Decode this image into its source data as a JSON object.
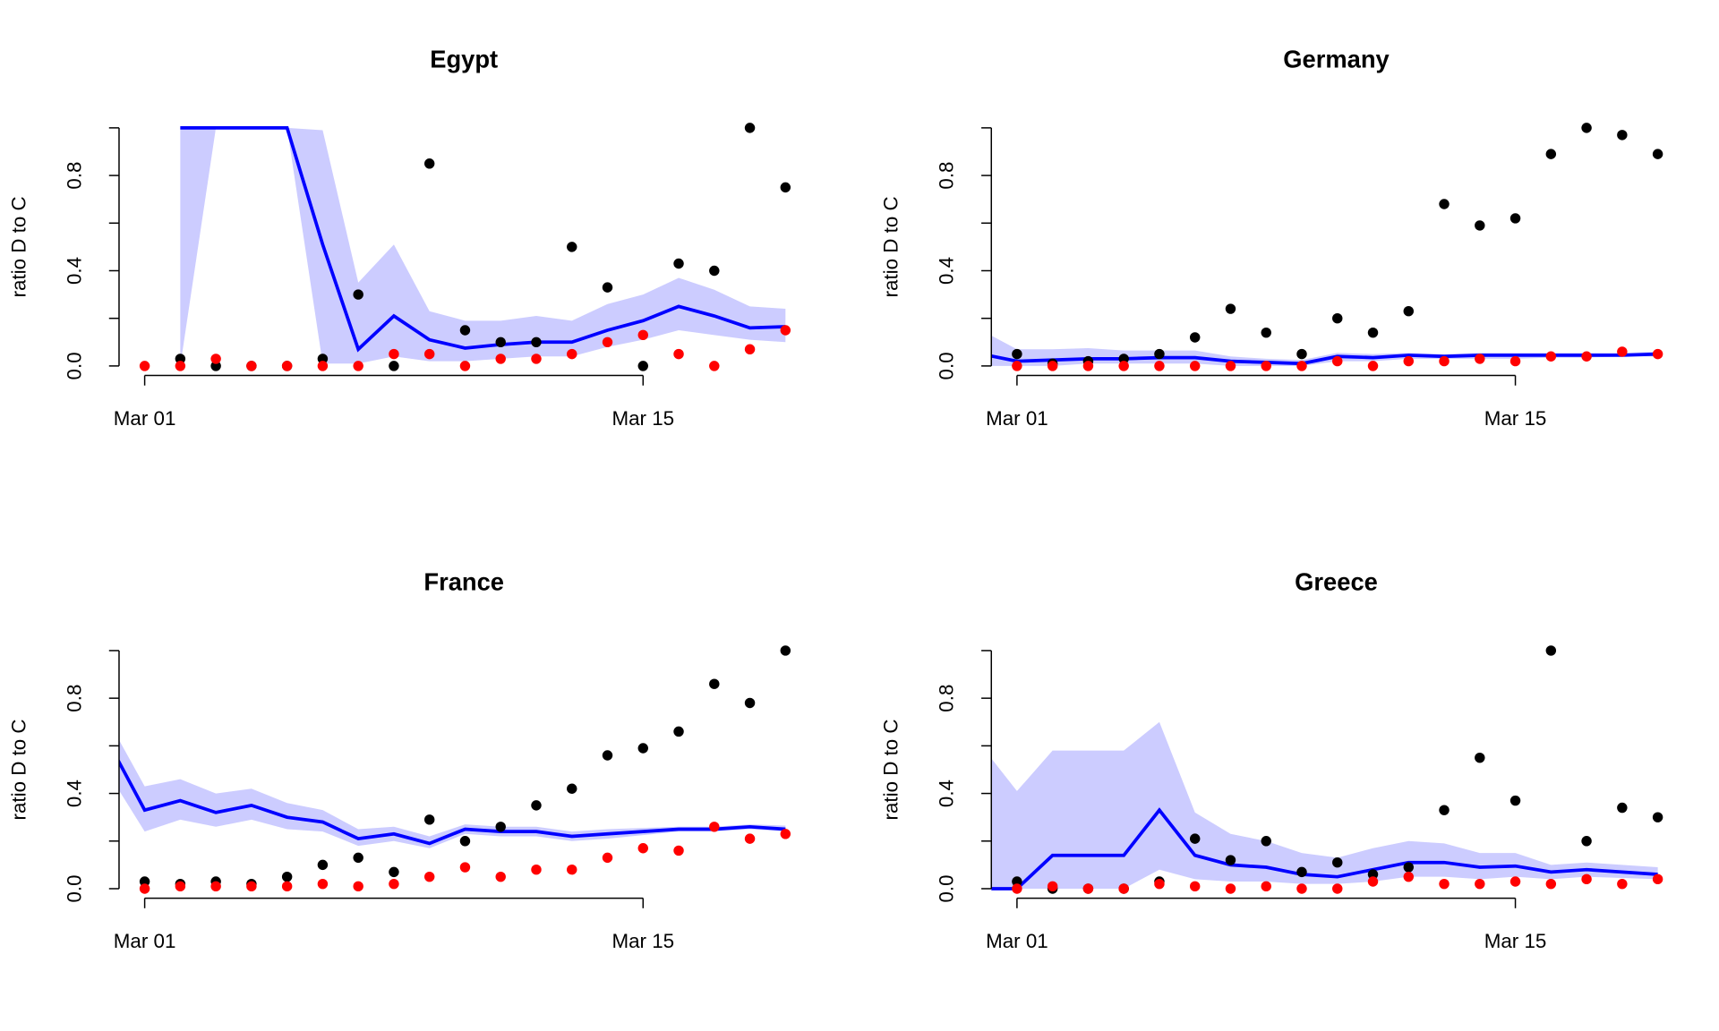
{
  "chart_data": [
    {
      "type": "line",
      "title": "Egypt",
      "ylabel": "ratio D to C",
      "x": [
        0,
        1,
        2,
        3,
        4,
        5,
        6,
        7,
        8,
        9,
        10,
        11,
        12,
        13,
        14,
        15,
        16,
        17,
        18,
        19
      ],
      "xlim": [
        0.28,
        19.72
      ],
      "xticks": [
        {
          "value": 1,
          "label": "Mar 01"
        },
        {
          "value": 15,
          "label": "Mar 15"
        }
      ],
      "ylim": [
        -0.04,
        1.04
      ],
      "yticks": [
        {
          "value": 0,
          "label": "0.0"
        },
        {
          "value": 0.4,
          "label": "0.4"
        },
        {
          "value": 0.8,
          "label": "0.8"
        }
      ],
      "yminorticks": [
        0.2,
        0.6,
        1
      ],
      "band": {
        "color": "#ccccff",
        "lower": [
          null,
          null,
          0,
          1,
          1,
          1,
          0.01,
          0.01,
          0.04,
          0.02,
          0.02,
          0.03,
          0.04,
          0.04,
          0.08,
          0.11,
          0.15,
          0.13,
          0.11,
          0.1
        ],
        "upper": [
          null,
          null,
          1,
          1,
          1,
          1,
          0.99,
          0.35,
          0.51,
          0.23,
          0.19,
          0.19,
          0.21,
          0.19,
          0.26,
          0.3,
          0.37,
          0.32,
          0.25,
          0.24
        ]
      },
      "series": [
        {
          "color": "#0000ff",
          "marker": "line",
          "values": [
            null,
            null,
            1,
            1,
            1,
            1,
            0.51,
            0.07,
            0.21,
            0.11,
            0.075,
            0.09,
            0.1,
            0.1,
            0.15,
            0.19,
            0.25,
            0.21,
            0.16,
            0.165
          ]
        },
        {
          "color": "#000000",
          "marker": "point",
          "values": [
            null,
            null,
            0.03,
            0,
            0,
            0,
            0.03,
            0.3,
            0,
            0.85,
            0.15,
            0.1,
            0.1,
            0.5,
            0.33,
            0,
            0.43,
            0.4,
            1,
            0.75
          ]
        },
        {
          "color": "#ff0000",
          "marker": "point",
          "values": [
            null,
            0,
            0,
            0.03,
            0,
            0,
            0,
            0,
            0.05,
            0.05,
            0,
            0.03,
            0.03,
            0.05,
            0.1,
            0.13,
            0.05,
            0,
            0.07,
            0.15
          ]
        }
      ]
    },
    {
      "type": "line",
      "title": "Germany",
      "ylabel": "ratio D to C",
      "x": [
        0,
        1,
        2,
        3,
        4,
        5,
        6,
        7,
        8,
        9,
        10,
        11,
        12,
        13,
        14,
        15,
        16,
        17,
        18,
        19
      ],
      "xlim": [
        0.28,
        19.72
      ],
      "xticks": [
        {
          "value": 1,
          "label": "Mar 01"
        },
        {
          "value": 15,
          "label": "Mar 15"
        }
      ],
      "ylim": [
        -0.04,
        1.04
      ],
      "yticks": [
        {
          "value": 0,
          "label": "0.0"
        },
        {
          "value": 0.4,
          "label": "0.4"
        },
        {
          "value": 0.8,
          "label": "0.8"
        }
      ],
      "yminorticks": [
        0.2,
        0.6,
        1
      ],
      "band": {
        "color": "#ccccff",
        "lower": [
          0,
          0,
          0,
          0.01,
          0.01,
          0.01,
          0.01,
          0,
          0,
          0,
          0.02,
          0.02,
          0.03,
          0.03,
          0.03,
          0.03,
          0.035,
          0.035,
          0.04,
          0.04
        ],
        "upper": [
          0.15,
          0.07,
          0.07,
          0.075,
          0.065,
          0.065,
          0.065,
          0.04,
          0.03,
          0.025,
          0.055,
          0.05,
          0.055,
          0.05,
          0.055,
          0.055,
          0.055,
          0.055,
          0.055,
          0.06
        ]
      },
      "series": [
        {
          "color": "#0000ff",
          "marker": "line",
          "values": [
            0.05,
            0.02,
            0.025,
            0.03,
            0.03,
            0.035,
            0.035,
            0.02,
            0.015,
            0.01,
            0.04,
            0.035,
            0.045,
            0.04,
            0.045,
            0.045,
            0.045,
            0.045,
            0.045,
            0.05
          ]
        },
        {
          "color": "#000000",
          "marker": "point",
          "values": [
            null,
            0.05,
            0.01,
            0.02,
            0.03,
            0.05,
            0.12,
            0.24,
            0.14,
            0.05,
            0.2,
            0.14,
            0.23,
            0.68,
            0.59,
            0.62,
            0.89,
            1,
            0.97,
            0.89
          ]
        },
        {
          "color": "#ff0000",
          "marker": "point",
          "values": [
            null,
            0,
            0,
            0,
            0,
            0,
            0,
            0,
            0,
            0,
            0.02,
            0,
            0.02,
            0.02,
            0.03,
            0.02,
            0.04,
            0.04,
            0.06,
            0.05
          ]
        }
      ]
    },
    {
      "type": "line",
      "title": "France",
      "ylabel": "ratio D to C",
      "x": [
        0,
        1,
        2,
        3,
        4,
        5,
        6,
        7,
        8,
        9,
        10,
        11,
        12,
        13,
        14,
        15,
        16,
        17,
        18,
        19
      ],
      "xlim": [
        0.28,
        19.72
      ],
      "xticks": [
        {
          "value": 1,
          "label": "Mar 01"
        },
        {
          "value": 15,
          "label": "Mar 15"
        }
      ],
      "ylim": [
        -0.04,
        1.04
      ],
      "yticks": [
        {
          "value": 0,
          "label": "0.0"
        },
        {
          "value": 0.4,
          "label": "0.4"
        },
        {
          "value": 0.8,
          "label": "0.8"
        }
      ],
      "yminorticks": [
        0.2,
        0.6,
        1
      ],
      "band": {
        "color": "#ccccff",
        "lower": [
          0.48,
          0.24,
          0.29,
          0.26,
          0.29,
          0.25,
          0.24,
          0.18,
          0.2,
          0.17,
          0.23,
          0.22,
          0.22,
          0.2,
          0.21,
          0.225,
          0.24,
          0.24,
          0.25,
          0.24
        ],
        "upper": [
          0.7,
          0.43,
          0.46,
          0.4,
          0.42,
          0.36,
          0.33,
          0.25,
          0.26,
          0.22,
          0.27,
          0.26,
          0.26,
          0.24,
          0.25,
          0.255,
          0.26,
          0.26,
          0.27,
          0.265
        ]
      },
      "series": [
        {
          "color": "#0000ff",
          "marker": "line",
          "values": [
            0.61,
            0.33,
            0.37,
            0.32,
            0.35,
            0.3,
            0.28,
            0.21,
            0.23,
            0.19,
            0.25,
            0.24,
            0.24,
            0.22,
            0.23,
            0.24,
            0.25,
            0.25,
            0.26,
            0.25
          ]
        },
        {
          "color": "#000000",
          "marker": "point",
          "values": [
            null,
            0.03,
            0.02,
            0.03,
            0.02,
            0.05,
            0.1,
            0.13,
            0.07,
            0.29,
            0.2,
            0.26,
            0.35,
            0.42,
            0.56,
            0.59,
            0.66,
            0.86,
            0.78,
            1
          ]
        },
        {
          "color": "#ff0000",
          "marker": "point",
          "values": [
            null,
            0,
            0.01,
            0.01,
            0.01,
            0.01,
            0.02,
            0.01,
            0.02,
            0.05,
            0.09,
            0.05,
            0.08,
            0.08,
            0.13,
            0.17,
            0.16,
            0.26,
            0.21,
            0.23
          ]
        }
      ]
    },
    {
      "type": "line",
      "title": "Greece",
      "ylabel": "ratio D to C",
      "x": [
        0,
        1,
        2,
        3,
        4,
        5,
        6,
        7,
        8,
        9,
        10,
        11,
        12,
        13,
        14,
        15,
        16,
        17,
        18,
        19
      ],
      "xlim": [
        0.28,
        19.72
      ],
      "xticks": [
        {
          "value": 1,
          "label": "Mar 01"
        },
        {
          "value": 15,
          "label": "Mar 15"
        }
      ],
      "ylim": [
        -0.04,
        1.04
      ],
      "yticks": [
        {
          "value": 0,
          "label": "0.0"
        },
        {
          "value": 0.4,
          "label": "0.4"
        },
        {
          "value": 0.8,
          "label": "0.8"
        }
      ],
      "yminorticks": [
        0.2,
        0.6,
        1
      ],
      "band": {
        "color": "#ccccff",
        "lower": [
          0,
          0,
          0,
          0,
          0,
          0.08,
          0.04,
          0.03,
          0.03,
          0.02,
          0.02,
          0.03,
          0.05,
          0.05,
          0.04,
          0.05,
          0.04,
          0.05,
          0.045,
          0.04
        ],
        "upper": [
          0.6,
          0.41,
          0.58,
          0.58,
          0.58,
          0.7,
          0.32,
          0.23,
          0.2,
          0.15,
          0.13,
          0.17,
          0.2,
          0.19,
          0.15,
          0.15,
          0.1,
          0.11,
          0.1,
          0.09
        ]
      },
      "series": [
        {
          "color": "#0000ff",
          "marker": "line",
          "values": [
            0,
            0,
            0.14,
            0.14,
            0.14,
            0.33,
            0.14,
            0.1,
            0.09,
            0.06,
            0.05,
            0.08,
            0.11,
            0.11,
            0.09,
            0.095,
            0.07,
            0.08,
            0.07,
            0.06
          ]
        },
        {
          "color": "#000000",
          "marker": "point",
          "values": [
            null,
            0.03,
            0,
            0,
            0,
            0.03,
            0.21,
            0.12,
            0.2,
            0.07,
            0.11,
            0.06,
            0.09,
            0.33,
            0.55,
            0.37,
            1,
            0.2,
            0.34,
            0.3
          ]
        },
        {
          "color": "#ff0000",
          "marker": "point",
          "values": [
            null,
            0,
            0.01,
            0,
            0,
            0.02,
            0.01,
            0,
            0.01,
            0,
            0,
            0.03,
            0.05,
            0.02,
            0.02,
            0.03,
            0.02,
            0.04,
            0.02,
            0.04
          ]
        }
      ]
    }
  ]
}
